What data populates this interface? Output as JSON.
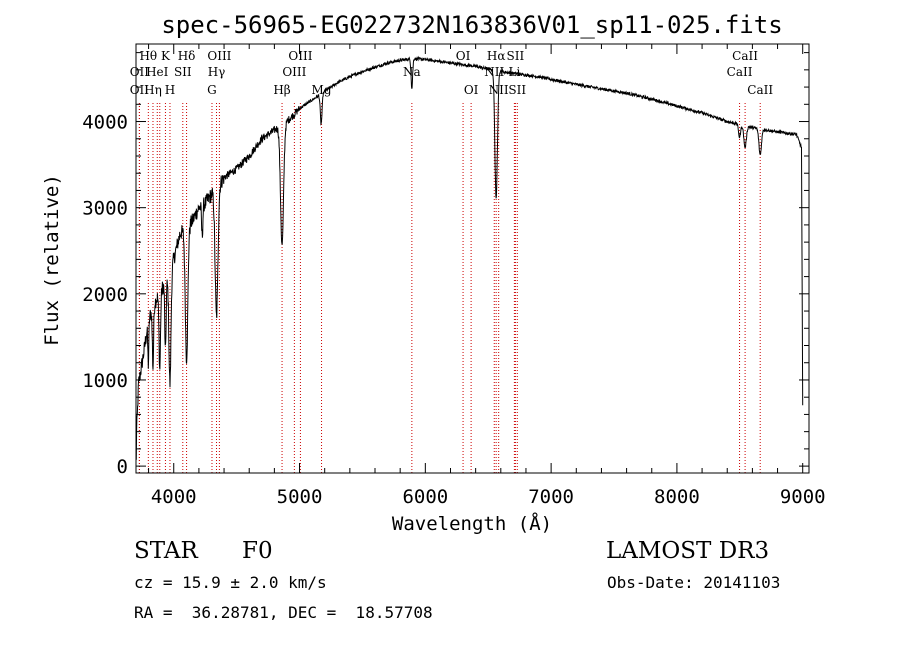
{
  "chart_data": {
    "type": "line",
    "title": "spec-56965-EG022732N163836V01_sp11-025.fits",
    "xlabel": "Wavelength (Å)",
    "ylabel": "Flux (relative)",
    "xlim": [
      3700,
      9050
    ],
    "ylim": [
      -80,
      4900
    ],
    "xticks": [
      4000,
      5000,
      6000,
      7000,
      8000,
      9000
    ],
    "yticks": [
      0,
      1000,
      2000,
      3000,
      4000
    ],
    "xtick_labels": [
      "4000",
      "5000",
      "6000",
      "7000",
      "8000",
      "9000"
    ],
    "ytick_labels": [
      "0",
      "1000",
      "2000",
      "3000",
      "4000"
    ],
    "continuum": [
      [
        3700,
        200
      ],
      [
        3720,
        950
      ],
      [
        3760,
        1300
      ],
      [
        3800,
        1700
      ],
      [
        3850,
        1900
      ],
      [
        3900,
        2050
      ],
      [
        3950,
        2150
      ],
      [
        4000,
        2400
      ],
      [
        4050,
        2700
      ],
      [
        4100,
        2750
      ],
      [
        4150,
        2850
      ],
      [
        4200,
        3000
      ],
      [
        4250,
        3050
      ],
      [
        4300,
        3150
      ],
      [
        4350,
        3250
      ],
      [
        4400,
        3350
      ],
      [
        4500,
        3450
      ],
      [
        4600,
        3600
      ],
      [
        4700,
        3800
      ],
      [
        4800,
        3900
      ],
      [
        4900,
        4000
      ],
      [
        5000,
        4150
      ],
      [
        5100,
        4250
      ],
      [
        5200,
        4350
      ],
      [
        5300,
        4450
      ],
      [
        5400,
        4520
      ],
      [
        5500,
        4580
      ],
      [
        5600,
        4630
      ],
      [
        5700,
        4680
      ],
      [
        5800,
        4710
      ],
      [
        5900,
        4730
      ],
      [
        6000,
        4720
      ],
      [
        6100,
        4700
      ],
      [
        6200,
        4680
      ],
      [
        6300,
        4660
      ],
      [
        6400,
        4640
      ],
      [
        6500,
        4610
      ],
      [
        6600,
        4580
      ],
      [
        6700,
        4560
      ],
      [
        6800,
        4540
      ],
      [
        6900,
        4520
      ],
      [
        7000,
        4490
      ],
      [
        7200,
        4430
      ],
      [
        7400,
        4380
      ],
      [
        7600,
        4330
      ],
      [
        7800,
        4260
      ],
      [
        8000,
        4180
      ],
      [
        8200,
        4100
      ],
      [
        8400,
        4000
      ],
      [
        8600,
        3930
      ],
      [
        8800,
        3880
      ],
      [
        8950,
        3850
      ],
      [
        8990,
        3700
      ],
      [
        9000,
        700
      ]
    ],
    "absorption_lines": [
      {
        "center": 3798,
        "depth": 500,
        "width": 4
      },
      {
        "center": 3835,
        "depth": 700,
        "width": 5
      },
      {
        "center": 3889,
        "depth": 900,
        "width": 6
      },
      {
        "center": 3934,
        "depth": 800,
        "width": 5
      },
      {
        "center": 3970,
        "depth": 1300,
        "width": 8
      },
      {
        "center": 4102,
        "depth": 1500,
        "width": 10
      },
      {
        "center": 4226,
        "depth": 350,
        "width": 5
      },
      {
        "center": 4340,
        "depth": 1500,
        "width": 11
      },
      {
        "center": 4861,
        "depth": 1400,
        "width": 12
      },
      {
        "center": 5172,
        "depth": 350,
        "width": 7
      },
      {
        "center": 5893,
        "depth": 350,
        "width": 6
      },
      {
        "center": 6563,
        "depth": 1500,
        "width": 10
      },
      {
        "center": 8498,
        "depth": 150,
        "width": 8
      },
      {
        "center": 8542,
        "depth": 250,
        "width": 10
      },
      {
        "center": 8662,
        "depth": 300,
        "width": 10
      }
    ],
    "marker_lines": [
      {
        "wavelength": 3727,
        "label": "OII",
        "row": 2
      },
      {
        "wavelength": 3727,
        "label": "OII",
        "row": 3
      },
      {
        "wavelength": 3798,
        "label": "Hθ",
        "row": 1
      },
      {
        "wavelength": 3835,
        "label": "Hη",
        "row": 3
      },
      {
        "wavelength": 3869,
        "label": "HeI",
        "row": 2
      },
      {
        "wavelength": 3889,
        "label": "",
        "row": 0
      },
      {
        "wavelength": 3934,
        "label": "K",
        "row": 1
      },
      {
        "wavelength": 3970,
        "label": "H",
        "row": 3
      },
      {
        "wavelength": 4072,
        "label": "SII",
        "row": 2
      },
      {
        "wavelength": 4102,
        "label": "Hδ",
        "row": 1
      },
      {
        "wavelength": 4304,
        "label": "G",
        "row": 3
      },
      {
        "wavelength": 4340,
        "label": "Hγ",
        "row": 2
      },
      {
        "wavelength": 4363,
        "label": "OIII",
        "row": 1
      },
      {
        "wavelength": 4861,
        "label": "Hβ",
        "row": 3
      },
      {
        "wavelength": 4959,
        "label": "OIII",
        "row": 2
      },
      {
        "wavelength": 5007,
        "label": "OIII",
        "row": 1
      },
      {
        "wavelength": 5175,
        "label": "Mg",
        "row": 3
      },
      {
        "wavelength": 5893,
        "label": "Na",
        "row": 2
      },
      {
        "wavelength": 6300,
        "label": "OI",
        "row": 1
      },
      {
        "wavelength": 6364,
        "label": "OI",
        "row": 3
      },
      {
        "wavelength": 6548,
        "label": "NII",
        "row": 2
      },
      {
        "wavelength": 6563,
        "label": "Hα",
        "row": 1
      },
      {
        "wavelength": 6583,
        "label": "NII",
        "row": 3
      },
      {
        "wavelength": 6716,
        "label": "SII",
        "row": 1
      },
      {
        "wavelength": 6731,
        "label": "SII",
        "row": 3
      },
      {
        "wavelength": 6708,
        "label": "Li",
        "row": 2
      },
      {
        "wavelength": 8498,
        "label": "CaII",
        "row": 2
      },
      {
        "wavelength": 8542,
        "label": "CaII",
        "row": 1
      },
      {
        "wavelength": 8662,
        "label": "CaII",
        "row": 3
      }
    ]
  },
  "info": {
    "class_label": "STAR",
    "subclass": "F0",
    "survey": "LAMOST DR3",
    "redshift": "cz = 15.9 ± 2.0 km/s",
    "obs_date": "Obs-Date: 20141103",
    "coords": "RA =  36.28781, DEC =  18.57708"
  },
  "colors": {
    "spectrum": "#000000",
    "marker": "#cc0000",
    "axis": "#000000"
  }
}
